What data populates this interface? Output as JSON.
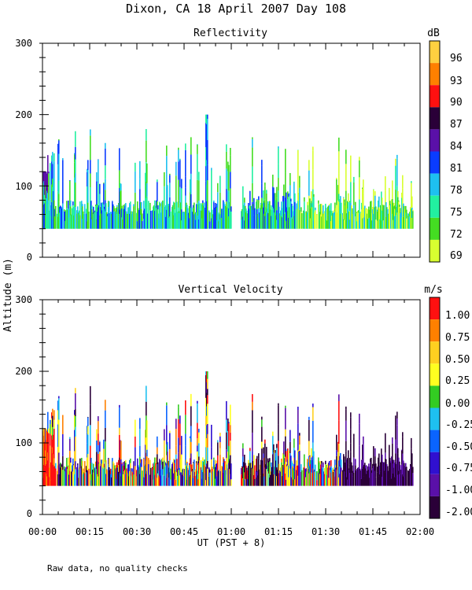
{
  "chart_data": [
    {
      "type": "heatmap",
      "title": "Dixon, CA 18 April 2007  Day 108",
      "subtitle": "Reflectivity",
      "ylabel": "Altitude (m)",
      "xlabel": "UT  (PST + 8)",
      "xlim_minutes": [
        0,
        120
      ],
      "ylim": [
        0,
        300
      ],
      "yticks": [
        "0",
        "100",
        "200",
        "300"
      ],
      "colorbar_unit": "dB",
      "colorbar_labels": [
        "69",
        "72",
        "75",
        "78",
        "81",
        "84",
        "87",
        "90",
        "93",
        "96"
      ],
      "colorbar_colors": [
        "#d8ff30",
        "#44dd22",
        "#22f0a0",
        "#1ec0f0",
        "#0a3cff",
        "#5a10a8",
        "#2a0038",
        "#ff1010",
        "#ff8000",
        "#ffd040"
      ],
      "data_gap_minutes": [
        60,
        63
      ],
      "echo_base_m": 40,
      "echo_typical_top_m": 100,
      "echo_max_top_m": 200,
      "peak_time_minutes": 52
    },
    {
      "type": "heatmap",
      "subtitle": "Vertical Velocity",
      "colorbar_unit": "m/s",
      "colorbar_labels": [
        "1.00",
        "0.75",
        "0.50",
        "0.25",
        "0.00",
        "-0.25",
        "-0.50",
        "-0.75",
        "-1.00",
        "-2.00"
      ],
      "colorbar_colors": [
        "#ff1010",
        "#ff8000",
        "#ffd020",
        "#ffff20",
        "#33cc22",
        "#1ec0f0",
        "#0a64ff",
        "#3010d0",
        "#5a10a8",
        "#2a0038"
      ],
      "ylim": [
        0,
        300
      ],
      "yticks": [
        "0",
        "100",
        "200",
        "300"
      ],
      "xticks": [
        "00:00",
        "00:15",
        "00:30",
        "00:45",
        "01:00",
        "01:15",
        "01:30",
        "01:45",
        "02:00"
      ]
    }
  ],
  "footer_note": "Raw data, no quality checks"
}
